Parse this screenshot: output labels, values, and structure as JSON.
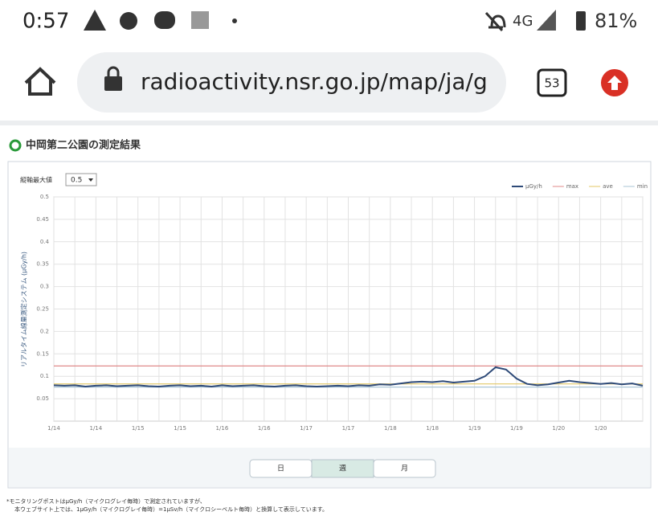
{
  "status_bar": {
    "time": "0:57",
    "network": "4G",
    "battery": "81%"
  },
  "browser": {
    "url": "radioactivity.nsr.go.jp/map/ja/g",
    "tabs": "53"
  },
  "page": {
    "heading": "中岡第二公園の測定結果",
    "axis_max_label": "縦軸最大値",
    "axis_max_value": "0.5",
    "buttons": [
      "日",
      "週",
      "月"
    ],
    "selected_button": 1,
    "footnotes": [
      "*モニタリングポストはμGy/h（マイクログレイ毎時）で測定されていますが、",
      "本ウェブサイト上では、1μGy/h（マイクログレイ毎時）=1μSv/h（マイクロシーベルト毎時）と換算して表示しています。"
    ]
  },
  "chart_data": {
    "type": "line",
    "ylabel": "リアルタイム線量測定システム (μGy/h)",
    "categories": [
      "1/14",
      null,
      null,
      null,
      "1/14",
      null,
      null,
      null,
      "1/15",
      null,
      null,
      null,
      "1/15",
      null,
      null,
      null,
      "1/16",
      null,
      null,
      null,
      "1/16",
      null,
      null,
      null,
      "1/17",
      null,
      null,
      null,
      "1/17",
      null,
      null,
      null,
      "1/18",
      null,
      null,
      null,
      "1/18",
      null,
      null,
      null,
      "1/19",
      null,
      null,
      null,
      "1/19",
      null,
      null,
      null,
      "1/20",
      null,
      null,
      null,
      "1/20",
      null,
      null,
      null,
      null
    ],
    "series": [
      {
        "name": "μGy/h",
        "color": "#2e4a78",
        "values": [
          0.08,
          0.079,
          0.08,
          0.077,
          0.079,
          0.08,
          0.078,
          0.079,
          0.08,
          0.078,
          0.077,
          0.079,
          0.08,
          0.078,
          0.079,
          0.077,
          0.08,
          0.078,
          0.079,
          0.08,
          0.078,
          0.077,
          0.079,
          0.08,
          0.078,
          0.077,
          0.078,
          0.079,
          0.078,
          0.08,
          0.079,
          0.082,
          0.081,
          0.084,
          0.087,
          0.088,
          0.087,
          0.089,
          0.086,
          0.088,
          0.09,
          0.1,
          0.12,
          0.115,
          0.095,
          0.083,
          0.08,
          0.082,
          0.086,
          0.09,
          0.087,
          0.085,
          0.083,
          0.085,
          0.082,
          0.084,
          0.079
        ]
      }
    ],
    "reference_lines": [
      {
        "name": "max",
        "color": "#e08a8a",
        "value": 0.123
      },
      {
        "name": "ave",
        "color": "#e3c766",
        "value": 0.083
      },
      {
        "name": "min",
        "color": "#a9c4d6",
        "value": 0.076
      }
    ],
    "ylim": [
      0,
      0.5
    ],
    "yticks": [
      0.05,
      0.1,
      0.15,
      0.2,
      0.25,
      0.3,
      0.35,
      0.4,
      0.45,
      0.5
    ],
    "grid": true,
    "legend": "top-right"
  }
}
